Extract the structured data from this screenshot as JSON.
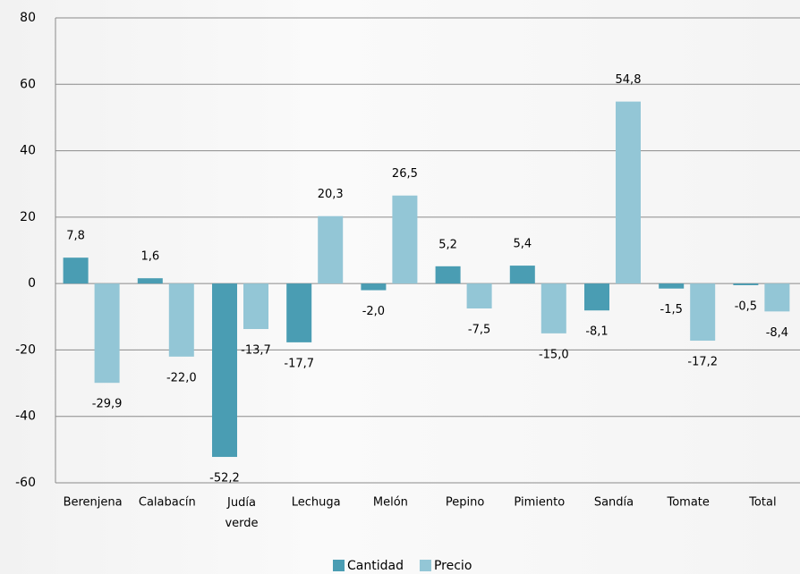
{
  "chart_data": {
    "type": "bar",
    "categories": [
      "Berenjena",
      "Calabacín",
      "Judía verde",
      "Lechuga",
      "Melón",
      "Pepino",
      "Pimiento",
      "Sandía",
      "Tomate",
      "Total"
    ],
    "series": [
      {
        "name": "Cantidad",
        "color": "#4a9db3",
        "values": [
          7.8,
          1.6,
          -52.2,
          -17.7,
          -2.0,
          5.2,
          5.4,
          -8.1,
          -1.5,
          -0.5
        ],
        "value_labels": [
          "7,8",
          "1,6",
          "-52,2",
          "-17,7",
          "-2,0",
          "5,2",
          "5,4",
          "-8,1",
          "-1,5",
          "-0,5"
        ]
      },
      {
        "name": "Precio",
        "color": "#93c6d6",
        "values": [
          -29.9,
          -22.0,
          -13.7,
          20.3,
          26.5,
          -7.5,
          -15.0,
          54.8,
          -17.2,
          -8.4
        ],
        "value_labels": [
          "-29,9",
          "-22,0",
          "-13,7",
          "20,3",
          "26,5",
          "-7,5",
          "-15,0",
          "54,8",
          "-17,2",
          "-8,4"
        ]
      }
    ],
    "ylim": [
      -60,
      80
    ],
    "yticks": [
      -60,
      -40,
      -20,
      0,
      20,
      40,
      60,
      80
    ],
    "grid": true,
    "legend": "bottom"
  }
}
